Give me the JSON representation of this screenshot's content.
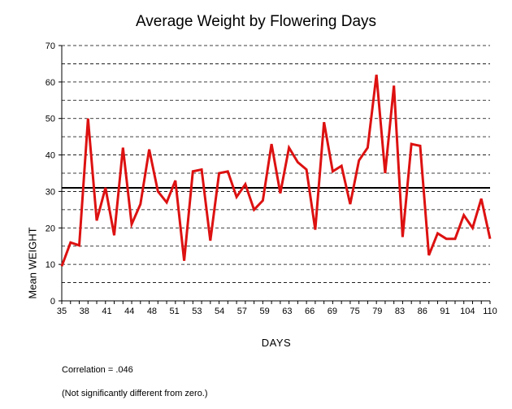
{
  "chart_data": {
    "type": "line",
    "title": "Average Weight by Flowering Days",
    "xlabel": "DAYS",
    "ylabel": "Mean WEIGHT",
    "ylim": [
      0,
      70
    ],
    "yticks": [
      0,
      10,
      20,
      30,
      40,
      50,
      60,
      70
    ],
    "grid": "horizontal dashed every 5",
    "x_tick_labels": [
      "35",
      "38",
      "41",
      "44",
      "48",
      "51",
      "53",
      "54",
      "57",
      "59",
      "63",
      "66",
      "69",
      "75",
      "79",
      "83",
      "86",
      "91",
      "104",
      "110"
    ],
    "reference_line": 31,
    "series": [
      {
        "color": "#dd1111",
        "values": [
          9.5,
          16,
          15.2,
          50,
          22,
          31,
          18,
          42,
          21,
          26.5,
          41.5,
          30,
          27,
          33,
          11,
          35.5,
          36,
          16.5,
          35,
          35.5,
          28.5,
          32,
          25,
          27.5,
          43,
          29.5,
          42,
          38,
          36,
          19.5,
          49,
          35.5,
          37,
          26.5,
          38.5,
          42,
          62,
          35,
          59,
          17.5,
          43,
          42.5,
          12.5,
          18.5,
          17,
          17,
          23.5,
          20,
          28,
          17
        ]
      }
    ]
  },
  "notes": {
    "correlation": "Correlation = .046",
    "significance": "(Not significantly different from zero.)"
  }
}
